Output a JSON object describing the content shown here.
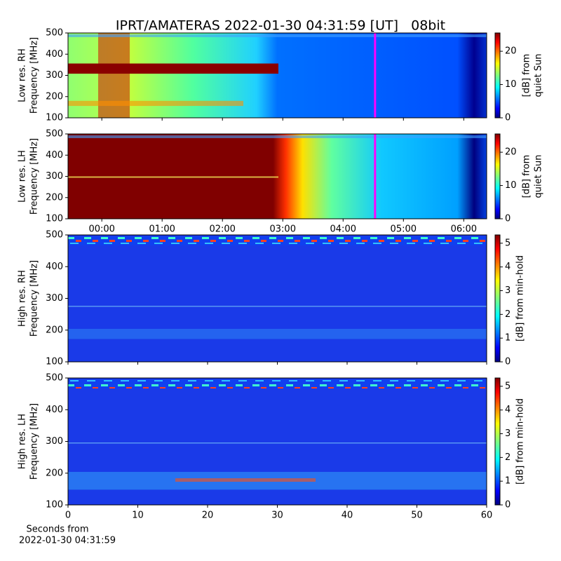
{
  "title": "IPRT/AMATERAS 2022-01-30 04:31:59 [UT]   08bit",
  "chart_data": [
    {
      "type": "heatmap",
      "ylabel": [
        "Low res. RH",
        "Frequency [MHz]"
      ],
      "xlim": [
        -0.56,
        6.38
      ],
      "xticks": [
        {
          "value": 0,
          "label": "00:00"
        },
        {
          "value": 1,
          "label": "01:00"
        },
        {
          "value": 2,
          "label": "02:00"
        },
        {
          "value": 3,
          "label": "03:00"
        },
        {
          "value": 4,
          "label": "04:00"
        },
        {
          "value": 5,
          "label": "05:00"
        },
        {
          "value": 6,
          "label": "06:00"
        }
      ],
      "show_xtick_labels": false,
      "ylim": [
        100,
        500
      ],
      "yticks": [
        100,
        200,
        300,
        400,
        500
      ],
      "colorbar": {
        "label": [
          "[dB] from",
          "quiet Sun"
        ],
        "clim": [
          0,
          25.5
        ],
        "ticks": [
          0,
          10,
          20
        ]
      },
      "marker": {
        "x": 4.53,
        "color": "#ff00ff"
      }
    },
    {
      "type": "heatmap",
      "ylabel": [
        "Low res. LH",
        "Frequency [MHz]"
      ],
      "xlim": [
        -0.56,
        6.38
      ],
      "xticks": [
        {
          "value": 0,
          "label": "00:00"
        },
        {
          "value": 1,
          "label": "01:00"
        },
        {
          "value": 2,
          "label": "02:00"
        },
        {
          "value": 3,
          "label": "03:00"
        },
        {
          "value": 4,
          "label": "04:00"
        },
        {
          "value": 5,
          "label": "05:00"
        },
        {
          "value": 6,
          "label": "06:00"
        }
      ],
      "show_xtick_labels": true,
      "ylim": [
        100,
        500
      ],
      "yticks": [
        100,
        200,
        300,
        400,
        500
      ],
      "colorbar": {
        "label": [
          "[dB] from",
          "quiet Sun"
        ],
        "clim": [
          0,
          25.5
        ],
        "ticks": [
          0,
          10,
          20
        ]
      },
      "marker": {
        "x": 4.53,
        "color": "#ff00ff"
      }
    },
    {
      "type": "heatmap",
      "ylabel": [
        "High res. RH",
        "Frequency [MHz]"
      ],
      "xlim": [
        0,
        60
      ],
      "xticks": [
        0,
        10,
        20,
        30,
        40,
        50,
        60
      ],
      "show_xtick_labels": false,
      "ylim": [
        100,
        500
      ],
      "yticks": [
        100,
        200,
        300,
        400,
        500
      ],
      "colorbar": {
        "label": [
          "[dB] from min-hold"
        ],
        "clim": [
          0,
          5.35
        ],
        "ticks": [
          0,
          1,
          2,
          3,
          4,
          5
        ]
      }
    },
    {
      "type": "heatmap",
      "ylabel": [
        "High res. LH",
        "Frequency [MHz]"
      ],
      "xlim": [
        0,
        60
      ],
      "xticks": [
        0,
        10,
        20,
        30,
        40,
        50,
        60
      ],
      "show_xtick_labels": true,
      "xlabel": [
        "Seconds from",
        "2022-01-30 04:31:59"
      ],
      "ylim": [
        100,
        500
      ],
      "yticks": [
        100,
        200,
        300,
        400,
        500
      ],
      "colorbar": {
        "label": [
          "[dB] from min-hold"
        ],
        "clim": [
          0,
          5.35
        ],
        "ticks": [
          0,
          1,
          2,
          3,
          4,
          5
        ]
      }
    }
  ]
}
